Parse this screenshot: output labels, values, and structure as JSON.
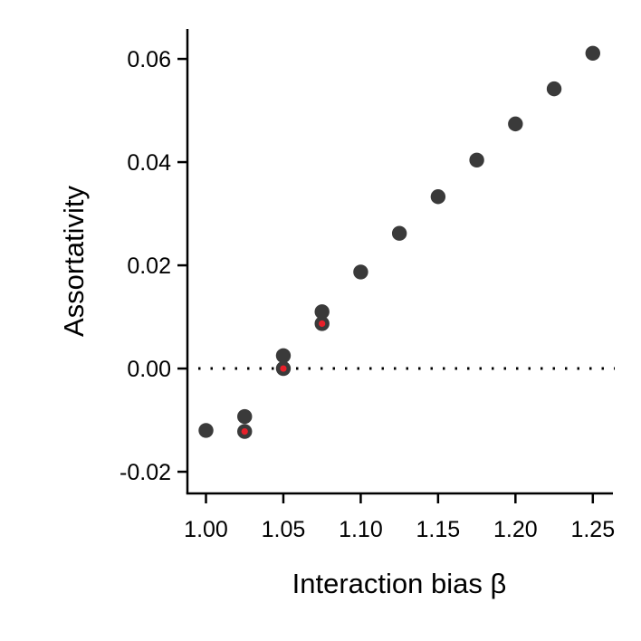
{
  "chart_data": {
    "type": "scatter",
    "xlabel": "Interaction bias β",
    "ylabel": "Assortativity",
    "xlim": [
      0.988,
      1.263
    ],
    "ylim": [
      -0.0242,
      0.0658
    ],
    "x_ticks": [
      1.0,
      1.05,
      1.1,
      1.15,
      1.2,
      1.25
    ],
    "x_tick_labels": [
      "1.00",
      "1.05",
      "1.10",
      "1.15",
      "1.20",
      "1.25"
    ],
    "y_ticks": [
      -0.02,
      0.0,
      0.02,
      0.04,
      0.06
    ],
    "y_tick_labels": [
      "-0.02",
      "0.00",
      "0.02",
      "0.04",
      "0.06"
    ],
    "reference_line": {
      "y": 0.0,
      "style": "dotted"
    },
    "grid": false,
    "legend": "none",
    "series": [
      {
        "color": "#3a3a3a",
        "marker": "circle",
        "x": [
          1.0,
          1.025,
          1.05,
          1.075,
          1.1,
          1.125,
          1.15,
          1.175,
          1.2,
          1.225,
          1.25
        ],
        "y": [
          -0.012,
          -0.0093,
          0.0025,
          0.011,
          0.0187,
          0.0262,
          0.0333,
          0.0404,
          0.0474,
          0.0542,
          0.0611
        ]
      },
      {
        "color": "#3a3a3a",
        "inner_color": "#e8202a",
        "marker": "circle-with-red-center",
        "x": [
          1.025,
          1.05,
          1.075
        ],
        "y": [
          -0.0122,
          0.0,
          0.0087
        ]
      }
    ]
  }
}
